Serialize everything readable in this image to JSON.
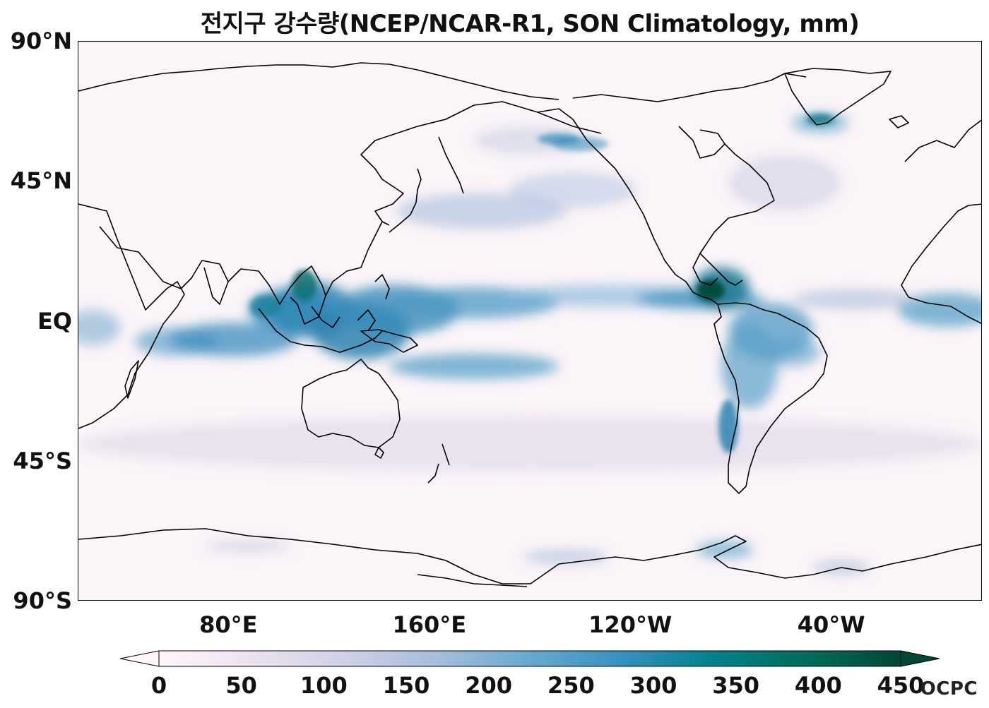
{
  "title": "전지구 강수량(NCEP/NCAR-R1, SON Climatology, mm)",
  "map": {
    "projection": "PlateCarree",
    "central_longitude": 180,
    "lon_range": [
      20,
      380
    ],
    "lat_range": [
      -90,
      90
    ]
  },
  "y_axis": {
    "ticks": [
      {
        "label": "90°N",
        "lat": 90
      },
      {
        "label": "45°N",
        "lat": 45
      },
      {
        "label": "EQ",
        "lat": 0
      },
      {
        "label": "45°S",
        "lat": -45
      },
      {
        "label": "90°S",
        "lat": -90
      }
    ]
  },
  "x_axis": {
    "ticks": [
      {
        "label": "80°E",
        "lon": 80
      },
      {
        "label": "160°E",
        "lon": 160
      },
      {
        "label": "120°W",
        "lon": 240
      },
      {
        "label": "40°W",
        "lon": 320
      }
    ]
  },
  "colorbar": {
    "min": 0,
    "max": 450,
    "extend": "both",
    "colormap": "PuBuGn",
    "colors": [
      "#fff7fb",
      "#ece2f0",
      "#d0d1e6",
      "#a6bddb",
      "#67a9cf",
      "#3690c0",
      "#02818a",
      "#016c59",
      "#014636"
    ],
    "tick_labels": [
      "0",
      "50",
      "100",
      "150",
      "200",
      "250",
      "300",
      "350",
      "400",
      "450"
    ]
  },
  "watermark": "OCPC"
}
